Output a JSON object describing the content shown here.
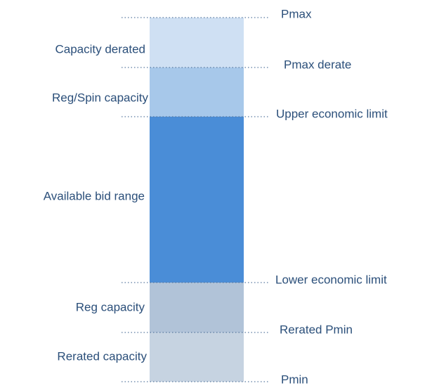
{
  "segments": [
    {
      "label": "Capacity derated"
    },
    {
      "label": "Reg/Spin capacity"
    },
    {
      "label": "Available bid range"
    },
    {
      "label": "Reg capacity"
    },
    {
      "label": "Rerated capacity"
    }
  ],
  "limits": [
    {
      "label": "Pmax"
    },
    {
      "label": "Pmax derate"
    },
    {
      "label": "Upper economic limit"
    },
    {
      "label": "Lower economic limit"
    },
    {
      "label": "Rerated Pmin"
    },
    {
      "label": "Pmin"
    }
  ]
}
